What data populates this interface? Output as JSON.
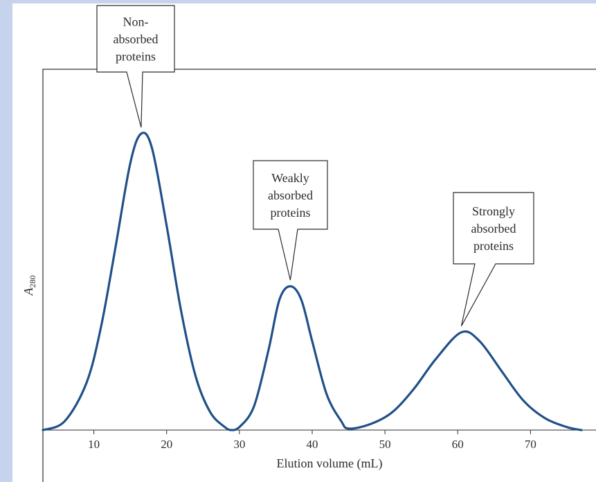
{
  "colors": {
    "background_band": "#c5d3ec",
    "plot_bg": "#ffffff",
    "curve": "#1f5088",
    "axis": "#2b2b2b",
    "callout_border": "#2b2b2b"
  },
  "chart_data": {
    "type": "line",
    "title": "",
    "xlabel": "Elution volume (mL)",
    "ylabel": {
      "main": "A",
      "sub": "280"
    },
    "xlim": [
      3,
      79
    ],
    "ylim": [
      0,
      1
    ],
    "xticks": [
      10,
      20,
      30,
      40,
      50,
      60,
      70
    ],
    "y_ticks_shown": false,
    "grid": false,
    "series": [
      {
        "x": [
          3,
          6,
          9,
          11,
          13,
          15,
          16.5,
          18,
          20,
          22,
          24,
          26,
          28,
          29,
          30,
          32,
          34,
          35.5,
          37,
          38.5,
          40,
          42,
          44,
          45,
          48,
          51,
          54,
          57,
          60.5,
          63,
          66,
          69,
          72,
          75,
          77
        ],
        "y": [
          0,
          0.03,
          0.16,
          0.35,
          0.62,
          0.9,
          1.0,
          0.95,
          0.69,
          0.4,
          0.18,
          0.06,
          0.01,
          0,
          0.01,
          0.08,
          0.27,
          0.44,
          0.485,
          0.44,
          0.3,
          0.12,
          0.03,
          0.005,
          0.02,
          0.06,
          0.14,
          0.24,
          0.33,
          0.3,
          0.2,
          0.1,
          0.04,
          0.01,
          0
        ]
      }
    ],
    "annotations": [
      {
        "lines": [
          "Non-",
          "absorbed",
          "proteins"
        ],
        "points_to": {
          "x": 16.5,
          "y": 1.0
        }
      },
      {
        "lines": [
          "Weakly",
          "absorbed",
          "proteins"
        ],
        "points_to": {
          "x": 37,
          "y": 0.485
        }
      },
      {
        "lines": [
          "Strongly",
          "absorbed",
          "proteins"
        ],
        "points_to": {
          "x": 60.5,
          "y": 0.33
        }
      }
    ]
  }
}
